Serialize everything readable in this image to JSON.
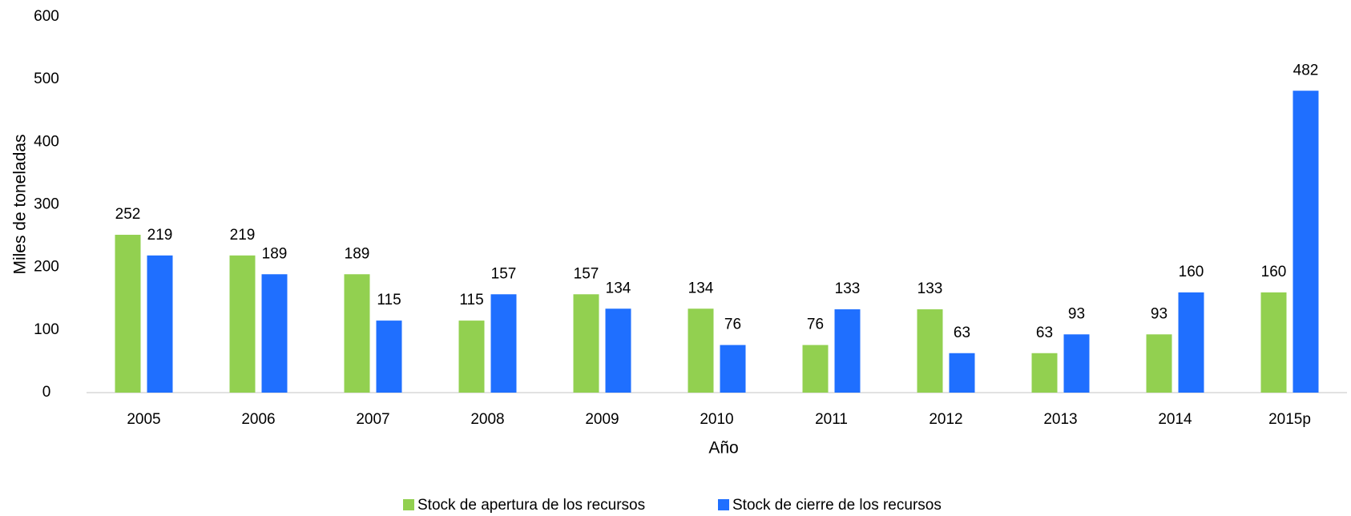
{
  "chart_data": {
    "type": "bar",
    "x_label": "Año",
    "y_label": "Miles de toneladas",
    "categories": [
      "2005",
      "2006",
      "2007",
      "2008",
      "2009",
      "2010",
      "2011",
      "2012",
      "2013",
      "2014",
      "2015p"
    ],
    "series": [
      {
        "name": "Stock de apertura de los recursos",
        "color": "#92d050",
        "values": [
          252,
          219,
          189,
          115,
          157,
          134,
          76,
          133,
          63,
          93,
          160
        ]
      },
      {
        "name": "Stock de cierre de los recursos",
        "color": "#1f6fff",
        "values": [
          219,
          189,
          115,
          157,
          134,
          76,
          133,
          63,
          93,
          160,
          482
        ]
      }
    ],
    "ylim": [
      0,
      600
    ],
    "yticks": [
      0,
      100,
      200,
      300,
      400,
      500,
      600
    ],
    "grid": false,
    "legend": "bottom"
  }
}
